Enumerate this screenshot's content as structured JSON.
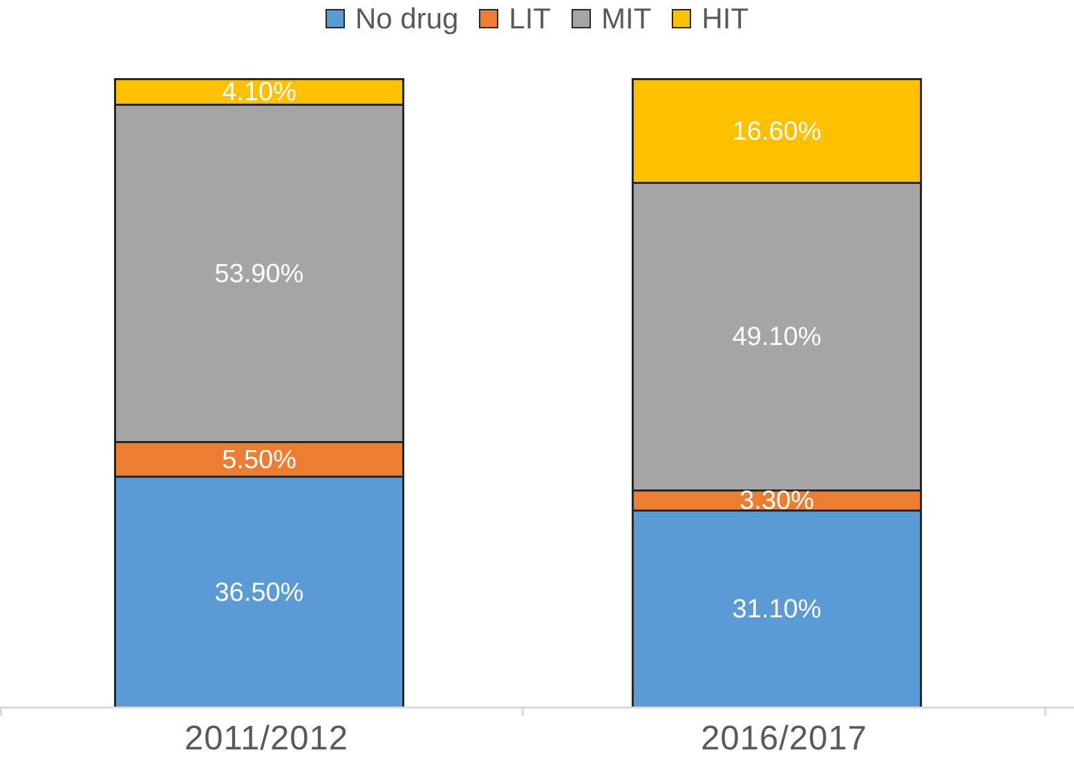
{
  "colors": {
    "no_drug": "#5B9BD5",
    "lit": "#ED7D31",
    "mit": "#A5A5A5",
    "hit": "#FFC000",
    "segment_border": "#262626",
    "axis_line": "#D9D9D9",
    "axis_text": "#595959",
    "legend_text": "#595959",
    "data_label_text": "#FFFFFF",
    "background": "#FFFFFF"
  },
  "legend": {
    "items": [
      {
        "label": "No drug",
        "color": "#5B9BD5"
      },
      {
        "label": "LIT",
        "color": "#ED7D31"
      },
      {
        "label": "MIT",
        "color": "#A5A5A5"
      },
      {
        "label": "HIT",
        "color": "#FFC000"
      }
    ]
  },
  "chart_data": {
    "type": "bar",
    "subtype": "stacked-100-percent-column",
    "title": "",
    "xlabel": "",
    "ylabel": "",
    "categories": [
      "2011/2012",
      "2016/2017"
    ],
    "series": [
      {
        "name": "No drug",
        "color": "#5B9BD5",
        "values": [
          36.5,
          31.1
        ],
        "labels": [
          "36.50%",
          "31.10%"
        ]
      },
      {
        "name": "LIT",
        "color": "#ED7D31",
        "values": [
          5.5,
          3.3
        ],
        "labels": [
          "5.50%",
          "3.30%"
        ]
      },
      {
        "name": "MIT",
        "color": "#A5A5A5",
        "values": [
          53.9,
          49.1
        ],
        "labels": [
          "53.90%",
          "49.10%"
        ]
      },
      {
        "name": "HIT",
        "color": "#FFC000",
        "values": [
          4.1,
          16.6
        ],
        "labels": [
          "4.10%",
          "16.60%"
        ]
      }
    ],
    "stack_order_bottom_to_top": [
      "No drug",
      "LIT",
      "MIT",
      "HIT"
    ],
    "value_format": "percent",
    "ylim": [
      0,
      100
    ],
    "grid": false,
    "legend_position": "top",
    "data_labels": true,
    "data_label_position": "center"
  }
}
